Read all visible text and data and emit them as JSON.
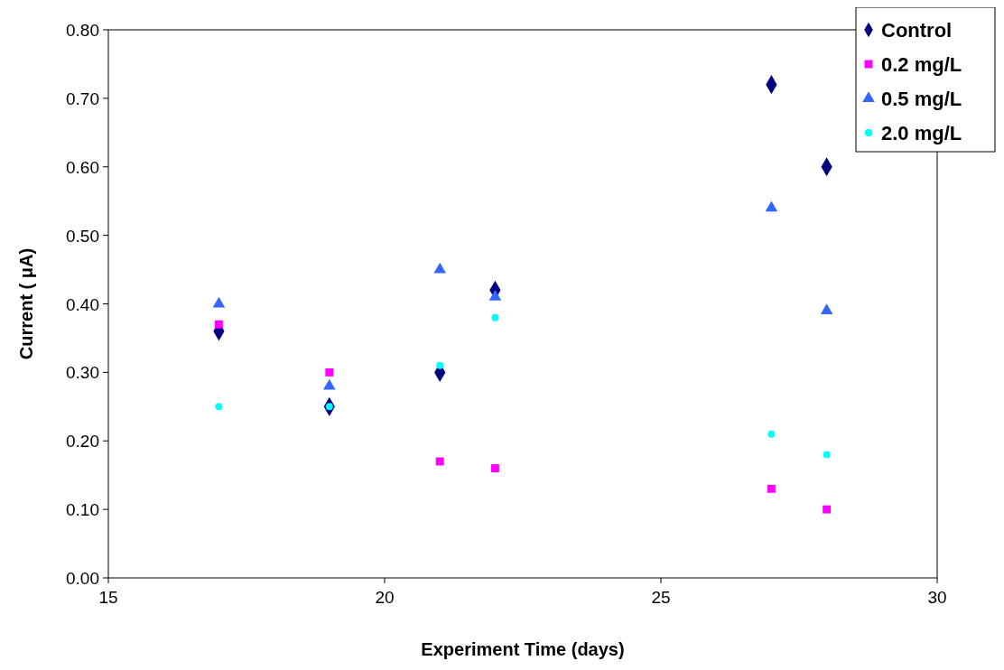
{
  "chart_data": {
    "type": "scatter",
    "xlabel": "Experiment Time (days)",
    "ylabel": "Current ( μA)",
    "x": [
      17,
      19,
      21,
      22,
      27,
      28
    ],
    "series": [
      {
        "name": "Control",
        "color": "#000080",
        "marker": "diamond",
        "values": [
          0.36,
          0.25,
          0.3,
          0.42,
          0.72,
          0.6
        ]
      },
      {
        "name": "0.2 mg/L",
        "color": "#ff00ff",
        "marker": "square",
        "values": [
          0.37,
          0.3,
          0.17,
          0.16,
          0.13,
          0.1
        ]
      },
      {
        "name": "0.5 mg/L",
        "color": "#3366ff",
        "marker": "triangle",
        "values": [
          0.4,
          0.28,
          0.45,
          0.41,
          0.54,
          0.39
        ]
      },
      {
        "name": "2.0 mg/L",
        "color": "#00ffff",
        "marker": "circle",
        "values": [
          0.25,
          0.25,
          0.31,
          0.38,
          0.21,
          0.18
        ]
      }
    ],
    "xlim": [
      15,
      30
    ],
    "xticks": [
      15,
      20,
      25,
      30
    ],
    "ylim": [
      0,
      0.8
    ],
    "yticks": [
      {
        "value": 0,
        "label": "0.00"
      },
      {
        "value": 0.1,
        "label": "0.10"
      },
      {
        "value": 0.2,
        "label": "0.20"
      },
      {
        "value": 0.3,
        "label": "0.30"
      },
      {
        "value": 0.4,
        "label": "0.40"
      },
      {
        "value": 0.5,
        "label": "0.50"
      },
      {
        "value": 0.6,
        "label": "0.60"
      },
      {
        "value": 0.7,
        "label": "0.70"
      },
      {
        "value": 0.8,
        "label": "0.80"
      }
    ],
    "grid": false,
    "legend": "top right"
  }
}
